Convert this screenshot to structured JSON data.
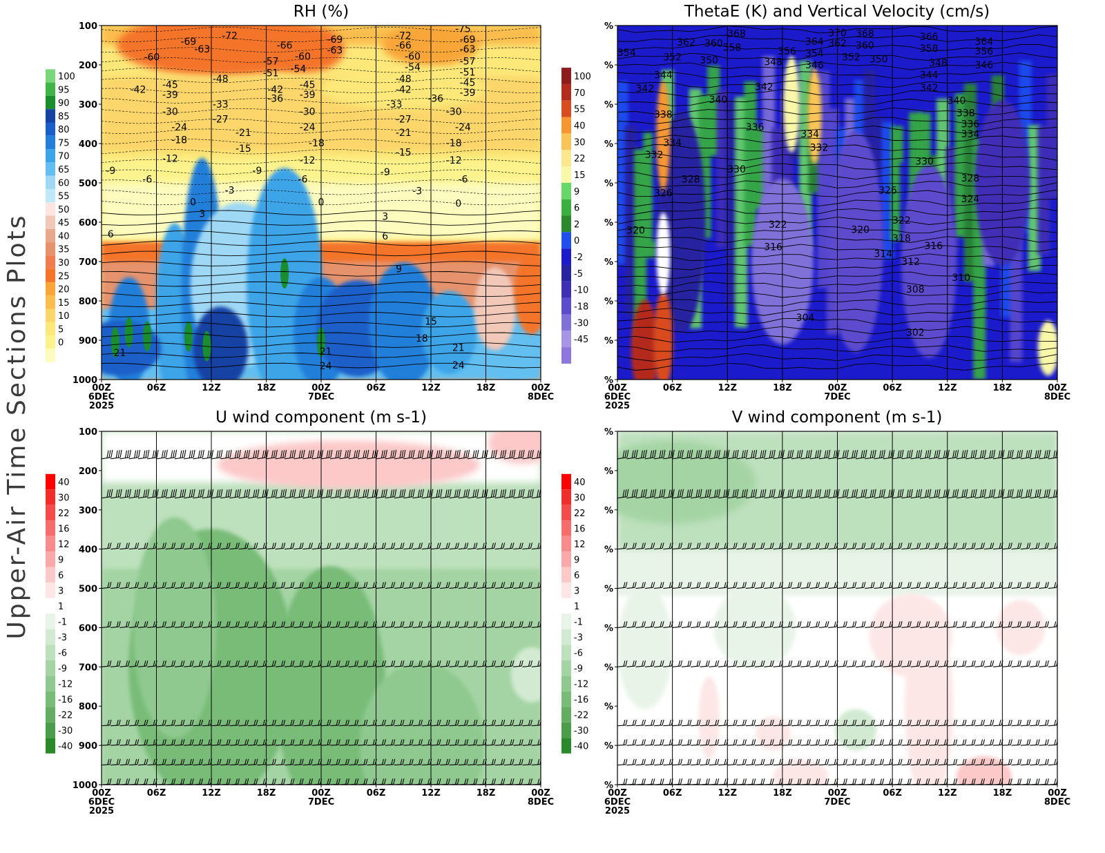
{
  "side_title": "Upper-Air Time Sections Plots",
  "colors": {
    "rh_scale": [
      "#f2f2f2",
      "#fdfbbe",
      "#fdf38d",
      "#fde879",
      "#fcd66a",
      "#fbbd4e",
      "#f9a638",
      "#f4752a",
      "#ef7d4f",
      "#e6936d",
      "#e7a88c",
      "#f2c8b8",
      "#fde6e1",
      "#bfe8f9",
      "#9fd8f5",
      "#64bff0",
      "#3ea4e8",
      "#217fd9",
      "#1a5fc9",
      "#1543a4",
      "#1a8d2f",
      "#42b348",
      "#79d779"
    ],
    "thetae_scale": [
      "#f2f2f2",
      "#8d76de",
      "#a694e4",
      "#8071d8",
      "#5b4bcd",
      "#3f2fb6",
      "#2623a0",
      "#1b1bcc",
      "#1f50ef",
      "#2a8a2a",
      "#39b13e",
      "#67d767",
      "#f9f7a8",
      "#fde78c",
      "#fbc456",
      "#f79631",
      "#d94c1f",
      "#b32c1c",
      "#8e1c1c"
    ],
    "wind_scale": [
      "#2a8a2a",
      "#4b9d4b",
      "#62ad62",
      "#78bc78",
      "#8fc98f",
      "#a4d4a4",
      "#bde0bd",
      "#d2ead2",
      "#e9f4e9",
      "#ffffff",
      "#fde6e6",
      "#fcc8c8",
      "#f9a9a9",
      "#f88b8b",
      "#f66b6b",
      "#f44b4b",
      "#f22b2b",
      "#ff0000"
    ]
  },
  "chart_data": [
    {
      "id": "rh",
      "type": "heatmap",
      "title": "RH (%)",
      "ylabel_ticks": [
        "100",
        "200",
        "300",
        "400",
        "500",
        "600",
        "700",
        "800",
        "900",
        "1000"
      ],
      "y_values": [
        100,
        200,
        300,
        400,
        500,
        600,
        700,
        800,
        900,
        1000
      ],
      "ylim": [
        1000,
        100
      ],
      "x_ticks": [
        "00Z",
        "06Z",
        "12Z",
        "18Z",
        "00Z",
        "06Z",
        "12Z",
        "18Z",
        "00Z"
      ],
      "x_date_labels": [
        {
          "tick": 0,
          "lines": [
            "6DEC",
            "2025"
          ]
        },
        {
          "tick": 4,
          "lines": [
            "7DEC"
          ]
        },
        {
          "tick": 8,
          "lines": [
            "8DEC"
          ]
        }
      ],
      "x_hours": [
        0,
        6,
        12,
        18,
        24,
        30,
        36,
        42,
        48
      ],
      "colorbar_labels": [
        "100",
        "95",
        "90",
        "85",
        "80",
        "75",
        "70",
        "65",
        "60",
        "55",
        "50",
        "45",
        "40",
        "35",
        "30",
        "25",
        "20",
        "15",
        "10",
        "5",
        "0"
      ],
      "overlay": "temperature contours",
      "contour_labels": [
        {
          "t": "-72",
          "h": 14,
          "p": 125
        },
        {
          "t": "-69",
          "h": 9.5,
          "p": 140
        },
        {
          "t": "-63",
          "h": 11,
          "p": 160
        },
        {
          "t": "-60",
          "h": 5.5,
          "p": 180
        },
        {
          "t": "-66",
          "h": 20,
          "p": 150
        },
        {
          "t": "-60",
          "h": 22,
          "p": 178
        },
        {
          "t": "-57",
          "h": 18.5,
          "p": 190
        },
        {
          "t": "-54",
          "h": 21.5,
          "p": 210
        },
        {
          "t": "-51",
          "h": 18.5,
          "p": 220
        },
        {
          "t": "-69",
          "h": 25.5,
          "p": 135
        },
        {
          "t": "-63",
          "h": 25.5,
          "p": 162
        },
        {
          "t": "-72",
          "h": 33,
          "p": 125
        },
        {
          "t": "-66",
          "h": 33,
          "p": 150
        },
        {
          "t": "-60",
          "h": 34,
          "p": 178
        },
        {
          "t": "-54",
          "h": 34,
          "p": 205
        },
        {
          "t": "-75",
          "h": 39.5,
          "p": 108
        },
        {
          "t": "-69",
          "h": 40,
          "p": 135
        },
        {
          "t": "-63",
          "h": 40,
          "p": 160
        },
        {
          "t": "-57",
          "h": 40,
          "p": 190
        },
        {
          "t": "-51",
          "h": 40,
          "p": 218
        },
        {
          "t": "-45",
          "h": 40,
          "p": 245
        },
        {
          "t": "-39",
          "h": 40,
          "p": 270
        },
        {
          "t": "-48",
          "h": 13,
          "p": 235
        },
        {
          "t": "-48",
          "h": 33,
          "p": 235
        },
        {
          "t": "-45",
          "h": 7.5,
          "p": 250
        },
        {
          "t": "-42",
          "h": 4,
          "p": 262
        },
        {
          "t": "-39",
          "h": 7.5,
          "p": 275
        },
        {
          "t": "-42",
          "h": 19,
          "p": 262
        },
        {
          "t": "-36",
          "h": 19,
          "p": 285
        },
        {
          "t": "-45",
          "h": 22.5,
          "p": 250
        },
        {
          "t": "-39",
          "h": 22.5,
          "p": 275
        },
        {
          "t": "-42",
          "h": 33,
          "p": 262
        },
        {
          "t": "-36",
          "h": 36.5,
          "p": 285
        },
        {
          "t": "-33",
          "h": 13,
          "p": 300
        },
        {
          "t": "-33",
          "h": 32,
          "p": 300
        },
        {
          "t": "-30",
          "h": 7.5,
          "p": 318
        },
        {
          "t": "-30",
          "h": 22.5,
          "p": 318
        },
        {
          "t": "-30",
          "h": 38.5,
          "p": 318
        },
        {
          "t": "-27",
          "h": 13,
          "p": 338
        },
        {
          "t": "-27",
          "h": 33,
          "p": 338
        },
        {
          "t": "-24",
          "h": 8.5,
          "p": 358
        },
        {
          "t": "-24",
          "h": 22.5,
          "p": 358
        },
        {
          "t": "-24",
          "h": 39.5,
          "p": 358
        },
        {
          "t": "-21",
          "h": 15.5,
          "p": 372
        },
        {
          "t": "-21",
          "h": 33,
          "p": 372
        },
        {
          "t": "-18",
          "h": 8.5,
          "p": 390
        },
        {
          "t": "-18",
          "h": 23.5,
          "p": 398
        },
        {
          "t": "-18",
          "h": 38.5,
          "p": 398
        },
        {
          "t": "-15",
          "h": 15.5,
          "p": 412
        },
        {
          "t": "-15",
          "h": 33,
          "p": 422
        },
        {
          "t": "-12",
          "h": 7.5,
          "p": 438
        },
        {
          "t": "-12",
          "h": 22.5,
          "p": 442
        },
        {
          "t": "-12",
          "h": 38.5,
          "p": 442
        },
        {
          "t": "-9",
          "h": 1,
          "p": 468
        },
        {
          "t": "-9",
          "h": 17,
          "p": 468
        },
        {
          "t": "-9",
          "h": 31,
          "p": 472
        },
        {
          "t": "-6",
          "h": 5,
          "p": 490
        },
        {
          "t": "-6",
          "h": 22,
          "p": 490
        },
        {
          "t": "-6",
          "h": 39.5,
          "p": 490
        },
        {
          "t": "-3",
          "h": 14,
          "p": 518
        },
        {
          "t": "-3",
          "h": 34.5,
          "p": 520
        },
        {
          "t": "0",
          "h": 10,
          "p": 548
        },
        {
          "t": "0",
          "h": 24,
          "p": 548
        },
        {
          "t": "0",
          "h": 39,
          "p": 552
        },
        {
          "t": "3",
          "h": 11,
          "p": 578
        },
        {
          "t": "3",
          "h": 31,
          "p": 585
        },
        {
          "t": "6",
          "h": 1,
          "p": 630
        },
        {
          "t": "6",
          "h": 31,
          "p": 635
        },
        {
          "t": "9",
          "h": 32.5,
          "p": 718
        },
        {
          "t": "15",
          "h": 36,
          "p": 852
        },
        {
          "t": "18",
          "h": 35,
          "p": 895
        },
        {
          "t": "21",
          "h": 2,
          "p": 932
        },
        {
          "t": "21",
          "h": 24.5,
          "p": 928
        },
        {
          "t": "21",
          "h": 39,
          "p": 918
        },
        {
          "t": "24",
          "h": 24.5,
          "p": 965
        },
        {
          "t": "24",
          "h": 39,
          "p": 963
        }
      ]
    },
    {
      "id": "thetae",
      "type": "heatmap",
      "title": "ThetaE (K) and Vertical Velocity (cm/s)",
      "ylabel_ticks": [
        "%",
        "%",
        "%",
        "%",
        "%",
        "%",
        "%",
        "%",
        "%",
        "%"
      ],
      "y_values": [
        100,
        200,
        300,
        400,
        500,
        600,
        700,
        800,
        900,
        1000
      ],
      "ylim": [
        1000,
        100
      ],
      "x_ticks": [
        "00Z",
        "06Z",
        "12Z",
        "18Z",
        "00Z",
        "06Z",
        "12Z",
        "18Z",
        "00Z"
      ],
      "x_date_labels": [
        {
          "tick": 0,
          "lines": [
            "6DEC",
            "2025"
          ]
        },
        {
          "tick": 4,
          "lines": [
            "7DEC"
          ]
        },
        {
          "tick": 8,
          "lines": [
            "8DEC"
          ]
        }
      ],
      "x_hours": [
        0,
        6,
        12,
        18,
        24,
        30,
        36,
        42,
        48
      ],
      "colorbar_labels": [
        "100",
        "70",
        "55",
        "40",
        "30",
        "22",
        "15",
        "9",
        "6",
        "2",
        "0",
        "-2",
        "-5",
        "-10",
        "-18",
        "-30",
        "-45"
      ],
      "overlay": "equivalent potential temperature contours",
      "contour_labels": [
        {
          "t": "368",
          "h": 13,
          "p": 120
        },
        {
          "t": "370",
          "h": 24,
          "p": 118
        },
        {
          "t": "368",
          "h": 27,
          "p": 120
        },
        {
          "t": "366",
          "h": 34,
          "p": 128
        },
        {
          "t": "364",
          "h": 40,
          "p": 140
        },
        {
          "t": "362",
          "h": 7.5,
          "p": 142
        },
        {
          "t": "360",
          "h": 10.5,
          "p": 145
        },
        {
          "t": "358",
          "h": 12.5,
          "p": 155
        },
        {
          "t": "364",
          "h": 21.5,
          "p": 140
        },
        {
          "t": "362",
          "h": 24,
          "p": 145
        },
        {
          "t": "360",
          "h": 27,
          "p": 150
        },
        {
          "t": "358",
          "h": 34,
          "p": 158
        },
        {
          "t": "356",
          "h": 40,
          "p": 165
        },
        {
          "t": "354",
          "h": 1,
          "p": 168
        },
        {
          "t": "352",
          "h": 6,
          "p": 180
        },
        {
          "t": "350",
          "h": 10,
          "p": 188
        },
        {
          "t": "356",
          "h": 18.5,
          "p": 165
        },
        {
          "t": "354",
          "h": 21.5,
          "p": 170
        },
        {
          "t": "352",
          "h": 25.5,
          "p": 180
        },
        {
          "t": "350",
          "h": 28.5,
          "p": 185
        },
        {
          "t": "346",
          "h": 21.5,
          "p": 200
        },
        {
          "t": "348",
          "h": 17,
          "p": 192
        },
        {
          "t": "348",
          "h": 35,
          "p": 195
        },
        {
          "t": "346",
          "h": 40,
          "p": 200
        },
        {
          "t": "344",
          "h": 5,
          "p": 225
        },
        {
          "t": "344",
          "h": 34,
          "p": 225
        },
        {
          "t": "342",
          "h": 3,
          "p": 260
        },
        {
          "t": "342",
          "h": 16,
          "p": 255
        },
        {
          "t": "342",
          "h": 34,
          "p": 258
        },
        {
          "t": "340",
          "h": 11,
          "p": 288
        },
        {
          "t": "340",
          "h": 37,
          "p": 290
        },
        {
          "t": "338",
          "h": 5,
          "p": 325
        },
        {
          "t": "338",
          "h": 38,
          "p": 322
        },
        {
          "t": "336",
          "h": 15,
          "p": 358
        },
        {
          "t": "336",
          "h": 38.5,
          "p": 350
        },
        {
          "t": "334",
          "h": 21,
          "p": 375
        },
        {
          "t": "334",
          "h": 38.5,
          "p": 375
        },
        {
          "t": "334",
          "h": 6,
          "p": 397
        },
        {
          "t": "332",
          "h": 4,
          "p": 428
        },
        {
          "t": "332",
          "h": 22,
          "p": 410
        },
        {
          "t": "330",
          "h": 13,
          "p": 465
        },
        {
          "t": "330",
          "h": 33.5,
          "p": 445
        },
        {
          "t": "328",
          "h": 8,
          "p": 490
        },
        {
          "t": "328",
          "h": 38.5,
          "p": 488
        },
        {
          "t": "326",
          "h": 5,
          "p": 525
        },
        {
          "t": "326",
          "h": 29.5,
          "p": 518
        },
        {
          "t": "324",
          "h": 38.5,
          "p": 540
        },
        {
          "t": "322",
          "h": 17.5,
          "p": 605
        },
        {
          "t": "322",
          "h": 31,
          "p": 595
        },
        {
          "t": "320",
          "h": 2,
          "p": 620
        },
        {
          "t": "320",
          "h": 26.5,
          "p": 618
        },
        {
          "t": "318",
          "h": 31,
          "p": 640
        },
        {
          "t": "316",
          "h": 17,
          "p": 662
        },
        {
          "t": "316",
          "h": 34.5,
          "p": 660
        },
        {
          "t": "314",
          "h": 29,
          "p": 680
        },
        {
          "t": "312",
          "h": 32,
          "p": 700
        },
        {
          "t": "310",
          "h": 37.5,
          "p": 740
        },
        {
          "t": "308",
          "h": 32.5,
          "p": 770
        },
        {
          "t": "304",
          "h": 20.5,
          "p": 842
        },
        {
          "t": "302",
          "h": 32.5,
          "p": 880
        }
      ]
    },
    {
      "id": "u",
      "type": "heatmap",
      "title": "U wind component (m s-1)",
      "ylabel_ticks": [
        "100",
        "200",
        "300",
        "400",
        "500",
        "600",
        "700",
        "800",
        "900",
        "1000"
      ],
      "y_values": [
        100,
        200,
        300,
        400,
        500,
        600,
        700,
        800,
        900,
        1000
      ],
      "ylim": [
        1000,
        100
      ],
      "x_ticks": [
        "00Z",
        "06Z",
        "12Z",
        "18Z",
        "00Z",
        "06Z",
        "12Z",
        "18Z",
        "00Z"
      ],
      "x_date_labels": [
        {
          "tick": 0,
          "lines": [
            "6DEC",
            "2025"
          ]
        },
        {
          "tick": 4,
          "lines": [
            "7DEC"
          ]
        },
        {
          "tick": 8,
          "lines": [
            "8DEC"
          ]
        }
      ],
      "x_hours": [
        0,
        6,
        12,
        18,
        24,
        30,
        36,
        42,
        48
      ],
      "colorbar_labels": [
        "40",
        "30",
        "22",
        "16",
        "12",
        "9",
        "6",
        "3",
        "1",
        "-1",
        "-3",
        "-6",
        "-9",
        "-12",
        "-16",
        "-22",
        "-30",
        "-40"
      ],
      "overlay": "wind barbs",
      "barb_levels": [
        170,
        270,
        400,
        500,
        600,
        700,
        850,
        900,
        950,
        1000
      ]
    },
    {
      "id": "v",
      "type": "heatmap",
      "title": "V wind component (m s-1)",
      "ylabel_ticks": [
        "%",
        "%",
        "%",
        "%",
        "%",
        "%",
        "%",
        "%",
        "%",
        "%"
      ],
      "y_values": [
        100,
        200,
        300,
        400,
        500,
        600,
        700,
        800,
        900,
        1000
      ],
      "ylim": [
        1000,
        100
      ],
      "x_ticks": [
        "00Z",
        "06Z",
        "12Z",
        "18Z",
        "00Z",
        "06Z",
        "12Z",
        "18Z",
        "00Z"
      ],
      "x_date_labels": [
        {
          "tick": 0,
          "lines": [
            "6DEC",
            "2025"
          ]
        },
        {
          "tick": 4,
          "lines": [
            "7DEC"
          ]
        },
        {
          "tick": 8,
          "lines": [
            "8DEC"
          ]
        }
      ],
      "x_hours": [
        0,
        6,
        12,
        18,
        24,
        30,
        36,
        42,
        48
      ],
      "colorbar_labels": [
        "40",
        "30",
        "22",
        "16",
        "12",
        "9",
        "6",
        "3",
        "1",
        "-1",
        "-3",
        "-6",
        "-9",
        "-12",
        "-16",
        "-22",
        "-30",
        "-40"
      ],
      "overlay": "wind barbs",
      "barb_levels": [
        170,
        270,
        400,
        500,
        600,
        700,
        850,
        900,
        950,
        1000
      ]
    }
  ]
}
